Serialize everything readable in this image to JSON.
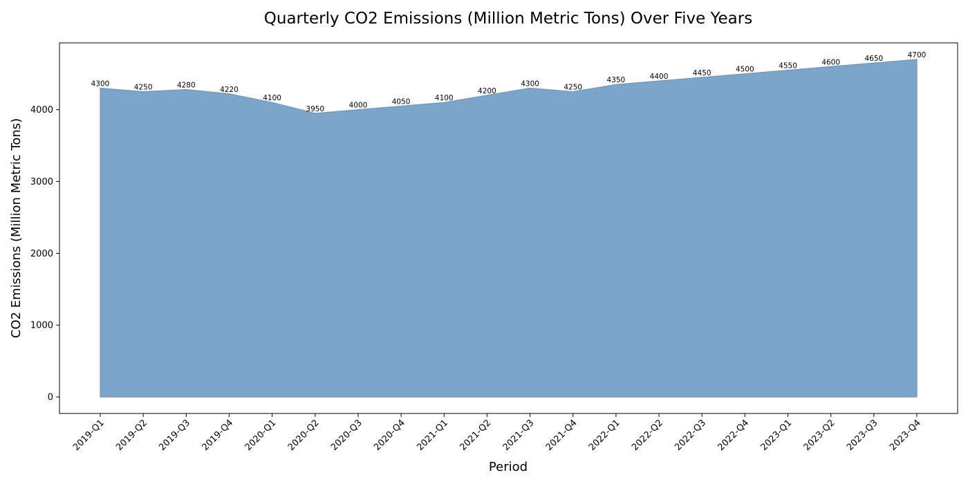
{
  "chart_data": {
    "type": "area",
    "title": "Quarterly CO2 Emissions (Million Metric Tons) Over Five Years",
    "xlabel": "Period",
    "ylabel": "CO2 Emissions (Million Metric Tons)",
    "categories": [
      "2019-Q1",
      "2019-Q2",
      "2019-Q3",
      "2019-Q4",
      "2020-Q1",
      "2020-Q2",
      "2020-Q3",
      "2020-Q4",
      "2021-Q1",
      "2021-Q2",
      "2021-Q3",
      "2021-Q4",
      "2022-Q1",
      "2022-Q2",
      "2022-Q3",
      "2022-Q4",
      "2023-Q1",
      "2023-Q2",
      "2023-Q3",
      "2023-Q4"
    ],
    "values": [
      4300,
      4250,
      4280,
      4220,
      4100,
      3950,
      4000,
      4050,
      4100,
      4200,
      4300,
      4250,
      4350,
      4400,
      4450,
      4500,
      4550,
      4600,
      4650,
      4700
    ],
    "yticks": [
      0,
      1000,
      2000,
      3000,
      4000
    ],
    "ylim": [
      -230,
      4930
    ],
    "grid": false,
    "legend": "none",
    "colors": {
      "fill": "#7ba6c9",
      "line": "#6f96bd"
    }
  }
}
